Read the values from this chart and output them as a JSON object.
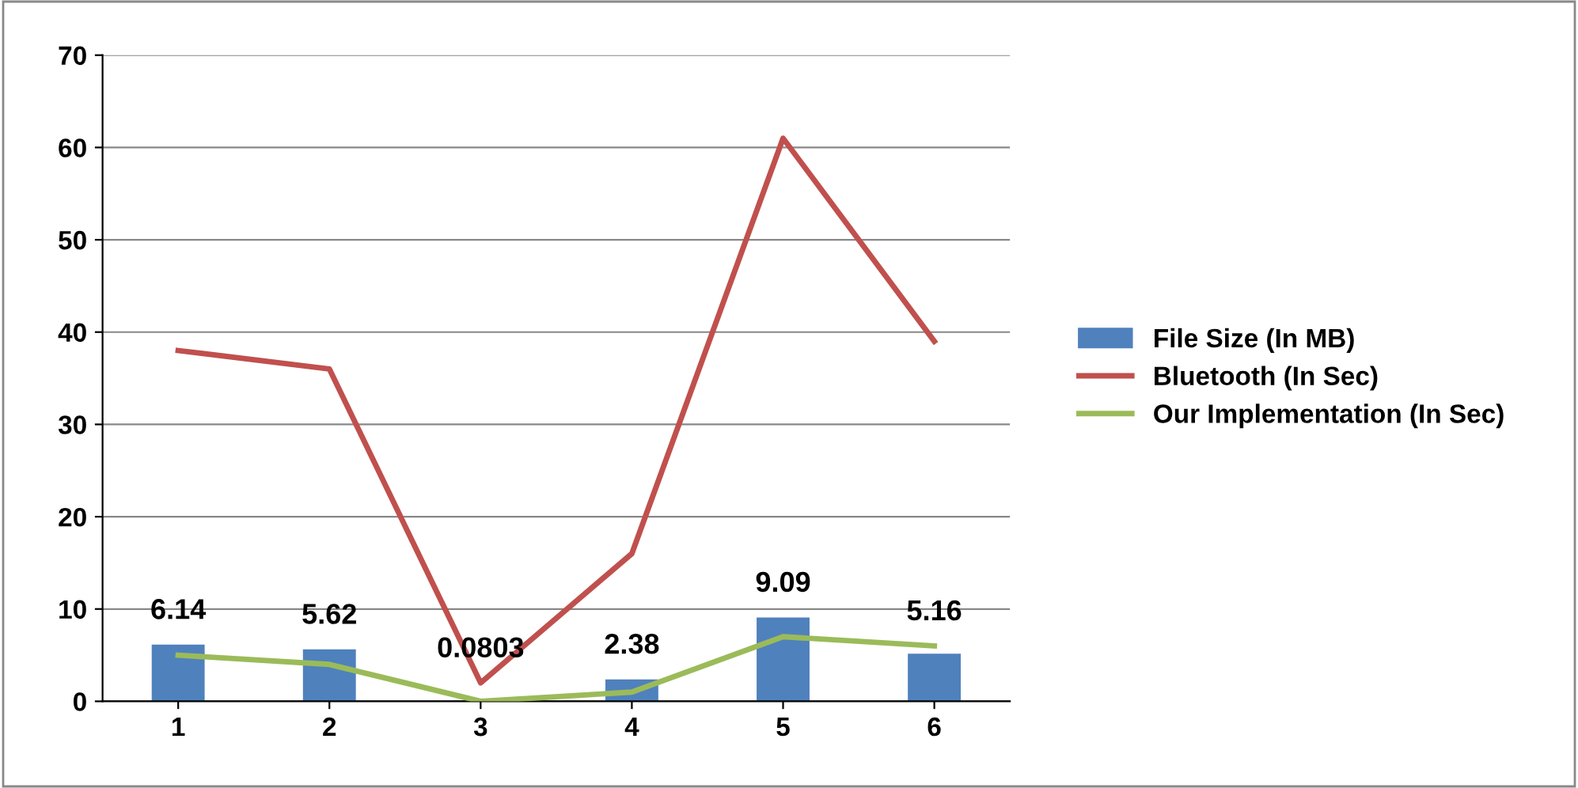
{
  "chart_data": {
    "type": "bar",
    "categories": [
      "1",
      "2",
      "3",
      "4",
      "5",
      "6"
    ],
    "series": [
      {
        "name": "File Size (In MB)",
        "type": "bar",
        "color": "#4f81bd",
        "values": [
          6.14,
          5.62,
          0.0803,
          2.38,
          9.09,
          5.16
        ],
        "value_labels": [
          "6.14",
          "5.62",
          "0.0803",
          "2.38",
          "9.09",
          "5.16"
        ]
      },
      {
        "name": "Bluetooth (In Sec)",
        "type": "line",
        "color": "#c0504d",
        "values": [
          38,
          36,
          2,
          16,
          61,
          39
        ]
      },
      {
        "name": "Our Implementation (In Sec)",
        "type": "line",
        "color": "#9bbb59",
        "values": [
          5,
          4,
          0,
          1,
          7,
          6
        ]
      }
    ],
    "ylim": [
      0,
      70
    ],
    "yticks": [
      0,
      10,
      20,
      30,
      40,
      50,
      60,
      70
    ],
    "grid": "y",
    "legend": "right",
    "marker": "none",
    "line_style": "solid"
  }
}
